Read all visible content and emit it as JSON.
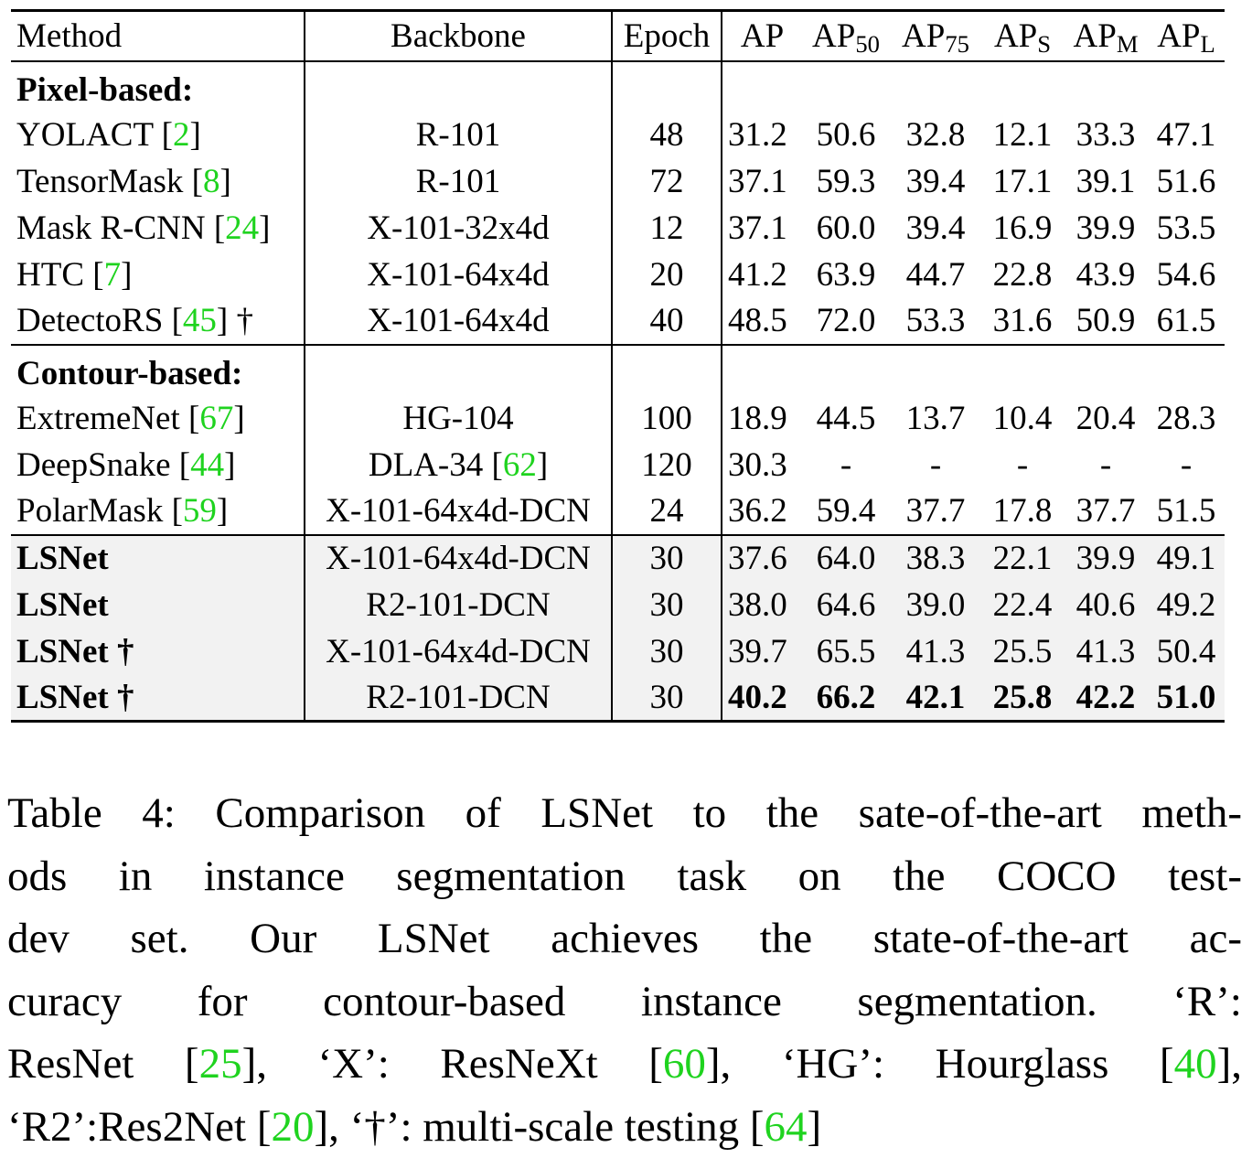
{
  "table": {
    "headers": {
      "method": "Method",
      "backbone": "Backbone",
      "epoch": "Epoch",
      "ap": "AP",
      "ap50_base": "AP",
      "ap50_sub": "50",
      "ap75_base": "AP",
      "ap75_sub": "75",
      "aps_base": "AP",
      "aps_sub": "S",
      "apm_base": "AP",
      "apm_sub": "M",
      "apl_base": "AP",
      "apl_sub": "L"
    },
    "groups": [
      {
        "label": "Pixel-based:",
        "rows": [
          {
            "method": "YOLACT",
            "ref": "2",
            "suffix": "",
            "backbone": "R-101",
            "backbone_ref": "",
            "epoch": "48",
            "values": [
              "31.2",
              "50.6",
              "32.8",
              "12.1",
              "33.3",
              "47.1"
            ]
          },
          {
            "method": "TensorMask",
            "ref": "8",
            "suffix": "",
            "backbone": "R-101",
            "backbone_ref": "",
            "epoch": "72",
            "values": [
              "37.1",
              "59.3",
              "39.4",
              "17.1",
              "39.1",
              "51.6"
            ]
          },
          {
            "method": "Mask R-CNN",
            "ref": "24",
            "suffix": "",
            "backbone": "X-101-32x4d",
            "backbone_ref": "",
            "epoch": "12",
            "values": [
              "37.1",
              "60.0",
              "39.4",
              "16.9",
              "39.9",
              "53.5"
            ]
          },
          {
            "method": "HTC",
            "ref": "7",
            "suffix": "",
            "backbone": "X-101-64x4d",
            "backbone_ref": "",
            "epoch": "20",
            "values": [
              "41.2",
              "63.9",
              "44.7",
              "22.8",
              "43.9",
              "54.6"
            ]
          },
          {
            "method": "DetectoRS",
            "ref": "45",
            "suffix": " †",
            "backbone": "X-101-64x4d",
            "backbone_ref": "",
            "epoch": "40",
            "values": [
              "48.5",
              "72.0",
              "53.3",
              "31.6",
              "50.9",
              "61.5"
            ]
          }
        ]
      },
      {
        "label": "Contour-based:",
        "rows": [
          {
            "method": "ExtremeNet",
            "ref": "67",
            "suffix": "",
            "backbone": "HG-104",
            "backbone_ref": "",
            "epoch": "100",
            "values": [
              "18.9",
              "44.5",
              "13.7",
              "10.4",
              "20.4",
              "28.3"
            ]
          },
          {
            "method": "DeepSnake",
            "ref": "44",
            "suffix": "",
            "backbone": "DLA-34",
            "backbone_ref": "62",
            "epoch": "120",
            "values": [
              "30.3",
              "-",
              "-",
              "-",
              "-",
              "-"
            ]
          },
          {
            "method": "PolarMask",
            "ref": "59",
            "suffix": "",
            "backbone": "X-101-64x4d-DCN",
            "backbone_ref": "",
            "epoch": "24",
            "values": [
              "36.2",
              "59.4",
              "37.7",
              "17.8",
              "37.7",
              "51.5"
            ]
          }
        ]
      }
    ],
    "ours": [
      {
        "method": "LSNet",
        "backbone": "X-101-64x4d-DCN",
        "epoch": "30",
        "values": [
          "37.6",
          "64.0",
          "38.3",
          "22.1",
          "39.9",
          "49.1"
        ],
        "bold_values": false
      },
      {
        "method": "LSNet",
        "backbone": "R2-101-DCN",
        "epoch": "30",
        "values": [
          "38.0",
          "64.6",
          "39.0",
          "22.4",
          "40.6",
          "49.2"
        ],
        "bold_values": false
      },
      {
        "method": "LSNet †",
        "backbone": "X-101-64x4d-DCN",
        "epoch": "30",
        "values": [
          "39.7",
          "65.5",
          "41.3",
          "25.5",
          "41.3",
          "50.4"
        ],
        "bold_values": false
      },
      {
        "method": "LSNet †",
        "backbone": "R2-101-DCN",
        "epoch": "30",
        "values": [
          "40.2",
          "66.2",
          "42.1",
          "25.8",
          "42.2",
          "51.0"
        ],
        "bold_values": true
      }
    ]
  },
  "caption": {
    "lines": [
      [
        {
          "t": "Table 4: Comparison of LSNet to the sate-of-the-art meth-"
        }
      ],
      [
        {
          "t": "ods in instance segmentation task on the COCO test-"
        }
      ],
      [
        {
          "t": "dev set.  Our LSNet achieves the state-of-the-art ac-"
        }
      ],
      [
        {
          "t": "curacy for contour-based instance segmentation.  ‘R’:"
        }
      ],
      [
        {
          "t": "ResNet ["
        },
        {
          "t": "25",
          "ref": true
        },
        {
          "t": "], ‘X’: ResNeXt ["
        },
        {
          "t": "60",
          "ref": true
        },
        {
          "t": "], ‘HG’: Hourglass ["
        },
        {
          "t": "40",
          "ref": true
        },
        {
          "t": "],"
        }
      ],
      [
        {
          "t": "‘R2’:Res2Net ["
        },
        {
          "t": "20",
          "ref": true
        },
        {
          "t": "], ‘†’: multi-scale testing ["
        },
        {
          "t": "64",
          "ref": true
        },
        {
          "t": "]"
        }
      ]
    ]
  },
  "colors": {
    "ref": "#1fd31f",
    "highlight_bg": "#f2f2f2"
  }
}
